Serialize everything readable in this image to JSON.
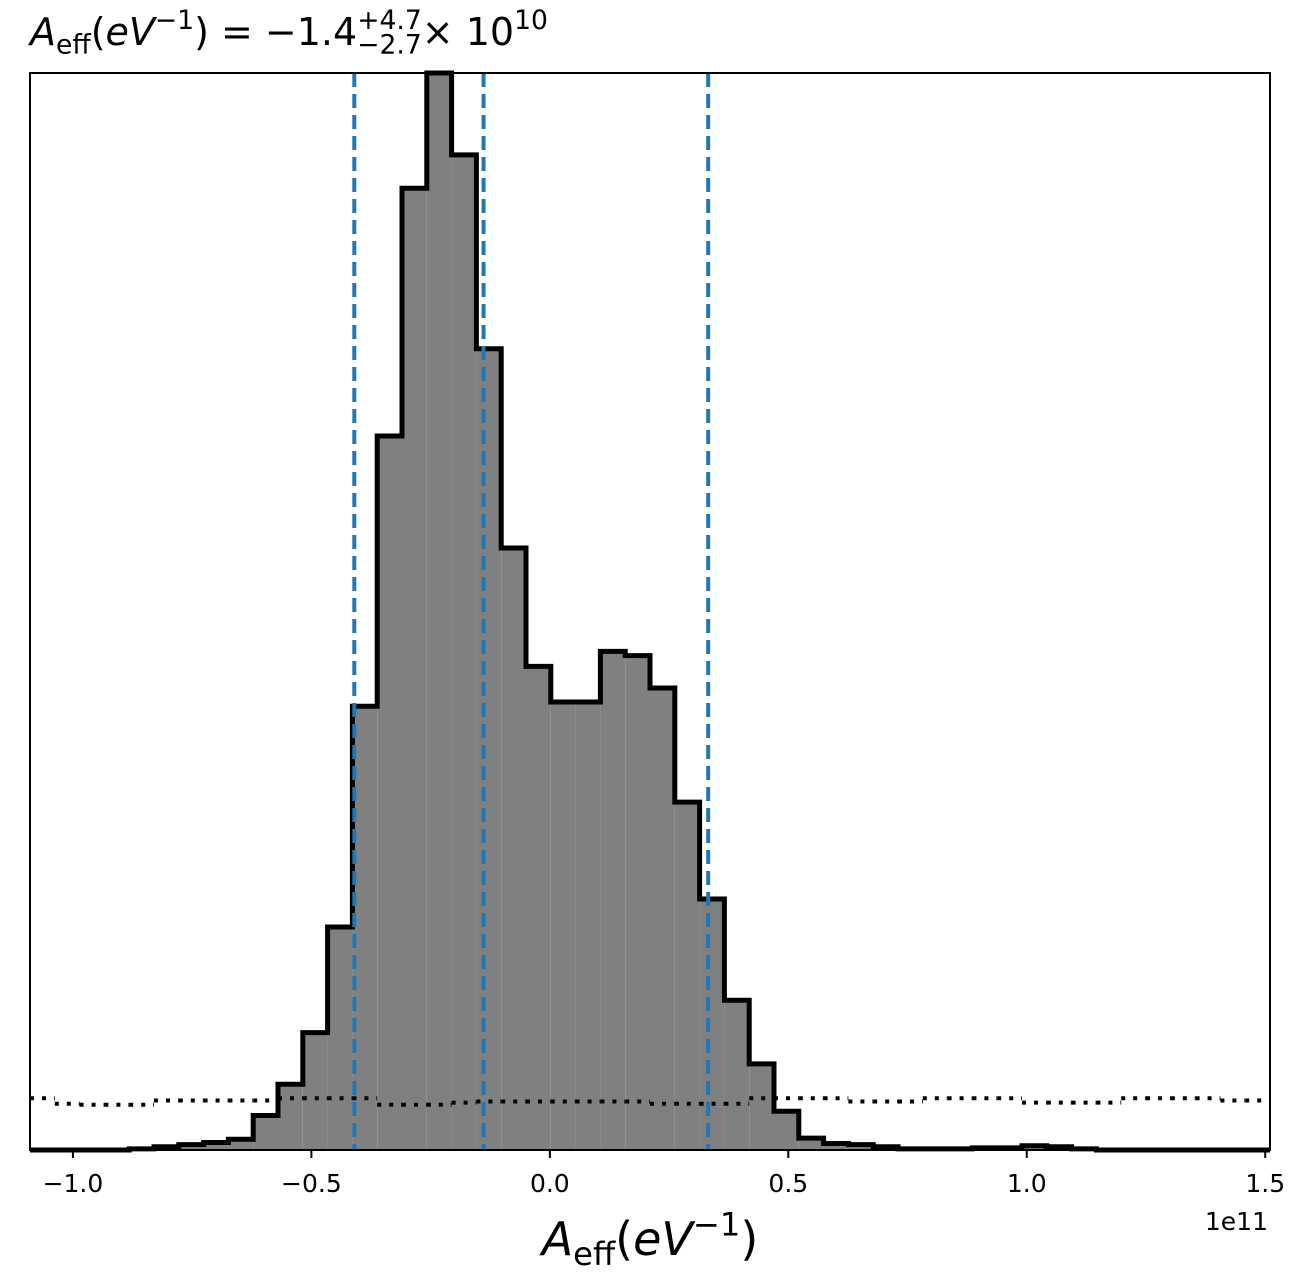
{
  "chart_data": {
    "type": "histogram",
    "title_parts": [
      {
        "text": "A",
        "style": "italic"
      },
      {
        "text": "eff",
        "style": "sub"
      },
      {
        "text": "(",
        "style": "normal"
      },
      {
        "text": "eV",
        "style": "italic"
      },
      {
        "text": "−1",
        "style": "sup"
      },
      {
        "text": ") = −1.4",
        "style": "normal"
      },
      {
        "text": "+4.7",
        "style": "sup-stacked"
      },
      {
        "text": "−2.7",
        "style": "sub"
      },
      {
        "text": " × 10",
        "style": "normal"
      },
      {
        "text": "10",
        "style": "sup"
      }
    ],
    "xlabel_parts": [
      {
        "text": "A",
        "style": "italic"
      },
      {
        "text": "eff",
        "style": "sub"
      },
      {
        "text": "(",
        "style": "normal"
      },
      {
        "text": "eV",
        "style": "italic"
      },
      {
        "text": "−1",
        "style": "sup"
      },
      {
        "text": ")",
        "style": "normal"
      }
    ],
    "x_offset_label": "1e11",
    "bins": [
      -1.09,
      -1.038,
      -0.986,
      -0.934,
      -0.882,
      -0.83,
      -0.778,
      -0.726,
      -0.674,
      -0.622,
      -0.57,
      -0.518,
      -0.466,
      -0.414,
      -0.362,
      -0.31,
      -0.258,
      -0.206,
      -0.154,
      -0.102,
      -0.05,
      0.002,
      0.054,
      0.106,
      0.158,
      0.21,
      0.262,
      0.314,
      0.366,
      0.418,
      0.47,
      0.522,
      0.574,
      0.626,
      0.678,
      0.73,
      0.782,
      0.834,
      0.886,
      0.938,
      0.99,
      1.042,
      1.094,
      1.146,
      1.198,
      1.25,
      1.302,
      1.354,
      1.406,
      1.458,
      1.51
    ],
    "series": [
      {
        "style": "filled",
        "color": "#808080",
        "edge_color": "#000000",
        "values": [
          0,
          0,
          0,
          0,
          0.1,
          0.3,
          0.5,
          0.7,
          1.0,
          3.2,
          6.1,
          10.9,
          20.7,
          41.2,
          66.3,
          89.3,
          100,
          92.4,
          74.4,
          55.9,
          44.9,
          41.6,
          41.6,
          46.3,
          45.9,
          42.9,
          32.3,
          23.3,
          13.9,
          8.0,
          3.6,
          1.1,
          0.6,
          0.5,
          0.3,
          0.1,
          0.1,
          0.1,
          0.2,
          0.2,
          0.4,
          0.3,
          0.1,
          0,
          0,
          0,
          0,
          0,
          0,
          0
        ]
      },
      {
        "style": "dotted",
        "color": "#000000",
        "values": [
          4.8,
          4.3,
          4.2,
          4.2,
          4.2,
          4.6,
          4.6,
          4.6,
          4.6,
          4.6,
          4.8,
          4.8,
          4.8,
          4.8,
          4.2,
          4.2,
          4.2,
          4.4,
          4.5,
          4.5,
          4.5,
          4.5,
          4.5,
          4.5,
          4.5,
          4.3,
          4.3,
          4.3,
          4.3,
          4.8,
          4.8,
          4.8,
          4.8,
          4.5,
          4.5,
          4.5,
          4.8,
          4.8,
          4.8,
          4.8,
          4.4,
          4.4,
          4.4,
          4.4,
          4.8,
          4.8,
          4.8,
          4.8,
          4.6,
          4.6
        ]
      }
    ],
    "vlines": [
      -0.41,
      -0.139,
      0.332
    ],
    "vline_color": "#1f77b4",
    "xlim": [
      -1.09,
      1.51
    ],
    "ylim": [
      0,
      100
    ],
    "xticks": [
      {
        "value": -1.0,
        "label": "−1.0"
      },
      {
        "value": -0.5,
        "label": "−0.5"
      },
      {
        "value": 0,
        "label": "0.0"
      },
      {
        "value": 0.5,
        "label": "0.5"
      },
      {
        "value": 1.0,
        "label": "1.0"
      },
      {
        "value": 1.5,
        "label": "1.5"
      }
    ]
  }
}
